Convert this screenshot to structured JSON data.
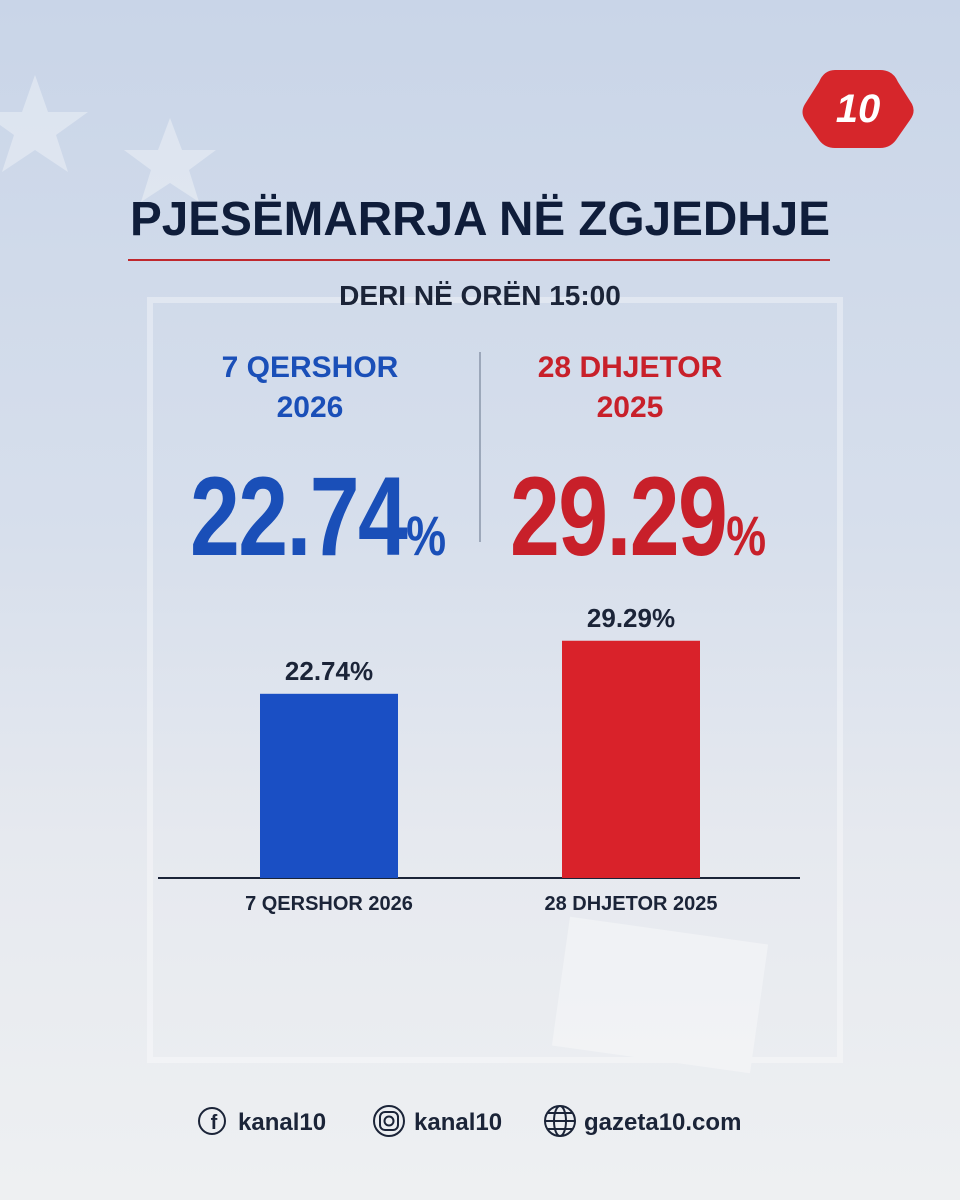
{
  "logo": "10",
  "header": {
    "title": "PJESËMARRJA NË ZGJEDHJE",
    "subtitle": "DERI NË ORËN 15:00"
  },
  "stats": [
    {
      "date": "7 QERSHOR 2026",
      "value": 22.74,
      "unit": "%",
      "color": "#1a4fb8"
    },
    {
      "date": "28 DHJETOR 2025",
      "value": 29.29,
      "unit": "%",
      "color": "#c8202a"
    }
  ],
  "chart_data": {
    "type": "bar",
    "categories": [
      "7 QERSHOR 2026",
      "28 DHJETOR 2025"
    ],
    "values": [
      22.74,
      29.29
    ],
    "value_labels": [
      "22.74%",
      "29.29%"
    ],
    "colors": [
      "#1a4fc4",
      "#d9222a"
    ]
  },
  "footer": {
    "links": [
      "kanal10",
      "kanal10",
      "gazeta10.com"
    ]
  }
}
